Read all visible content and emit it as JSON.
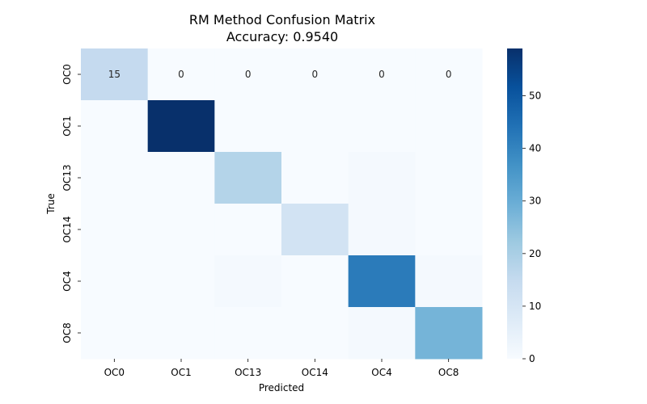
{
  "chart_data": {
    "type": "heatmap",
    "title_line1": "RM Method Confusion Matrix",
    "title_line2": "Accuracy: 0.9540",
    "xlabel": "Predicted",
    "ylabel": "True",
    "x_categories": [
      "OC0",
      "OC1",
      "OC13",
      "OC14",
      "OC4",
      "OC8"
    ],
    "y_categories": [
      "OC0",
      "OC1",
      "OC13",
      "OC14",
      "OC4",
      "OC8"
    ],
    "matrix": [
      [
        15,
        0,
        0,
        0,
        0,
        0
      ],
      [
        0,
        59,
        0,
        0,
        0,
        0
      ],
      [
        0,
        0,
        18,
        0,
        1,
        0
      ],
      [
        0,
        0,
        0,
        11,
        1,
        0
      ],
      [
        0,
        0,
        1,
        0,
        42,
        1
      ],
      [
        0,
        0,
        0,
        0,
        1,
        28
      ]
    ],
    "annotated_rows": [
      0
    ],
    "colorbar": {
      "min": 0,
      "max": 59,
      "ticks": [
        0,
        10,
        20,
        30,
        40,
        50
      ],
      "colormap": "Blues"
    }
  }
}
